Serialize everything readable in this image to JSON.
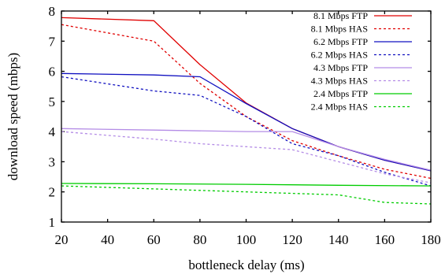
{
  "chart_data": {
    "type": "line",
    "title": "",
    "xlabel": "bottleneck delay (ms)",
    "ylabel": "download speed (mbps)",
    "xlim": [
      20,
      180
    ],
    "ylim": [
      1,
      8
    ],
    "xticks": [
      20,
      40,
      60,
      80,
      100,
      120,
      140,
      160,
      180
    ],
    "yticks": [
      1,
      2,
      3,
      4,
      5,
      6,
      7,
      8
    ],
    "grid": false,
    "legend_position": "top-right",
    "series": [
      {
        "name": "8.1 Mbps FTP",
        "color": "#e00000",
        "style": "solid",
        "x": [
          20,
          60,
          80,
          100,
          120,
          140,
          160,
          180
        ],
        "y": [
          7.78,
          7.68,
          6.22,
          4.95,
          4.1,
          3.5,
          3.05,
          2.7
        ]
      },
      {
        "name": "8.1 Mbps HAS",
        "color": "#e00000",
        "style": "dashed",
        "x": [
          20,
          60,
          80,
          100,
          120,
          140,
          160,
          180
        ],
        "y": [
          7.55,
          7.0,
          5.6,
          4.5,
          3.7,
          3.2,
          2.75,
          2.45
        ]
      },
      {
        "name": "6.2 Mbps FTP",
        "color": "#1010c0",
        "style": "solid",
        "x": [
          20,
          60,
          80,
          100,
          120,
          140,
          160,
          180
        ],
        "y": [
          5.93,
          5.88,
          5.82,
          4.93,
          4.1,
          3.5,
          3.05,
          2.7
        ]
      },
      {
        "name": "6.2 Mbps HAS",
        "color": "#1010c0",
        "style": "dashed",
        "x": [
          20,
          60,
          80,
          100,
          120,
          140,
          160,
          180
        ],
        "y": [
          5.82,
          5.35,
          5.2,
          4.5,
          3.6,
          3.2,
          2.65,
          2.2
        ]
      },
      {
        "name": "4.3 Mbps FTP",
        "color": "#b48ce6",
        "style": "solid",
        "x": [
          20,
          60,
          100,
          120,
          140,
          160,
          180
        ],
        "y": [
          4.1,
          4.05,
          4.0,
          4.0,
          3.5,
          3.08,
          2.72
        ]
      },
      {
        "name": "4.3 Mbps HAS",
        "color": "#b48ce6",
        "style": "dashed",
        "x": [
          20,
          60,
          80,
          100,
          120,
          140,
          160,
          180
        ],
        "y": [
          4.0,
          3.75,
          3.6,
          3.5,
          3.4,
          3.0,
          2.6,
          2.3
        ]
      },
      {
        "name": "2.4 Mbps FTP",
        "color": "#00cc00",
        "style": "solid",
        "x": [
          20,
          60,
          100,
          140,
          180
        ],
        "y": [
          2.28,
          2.27,
          2.25,
          2.22,
          2.2
        ]
      },
      {
        "name": "2.4 Mbps HAS",
        "color": "#00cc00",
        "style": "dashed",
        "x": [
          20,
          60,
          100,
          140,
          160,
          180
        ],
        "y": [
          2.2,
          2.1,
          2.0,
          1.9,
          1.65,
          1.6
        ]
      }
    ]
  }
}
